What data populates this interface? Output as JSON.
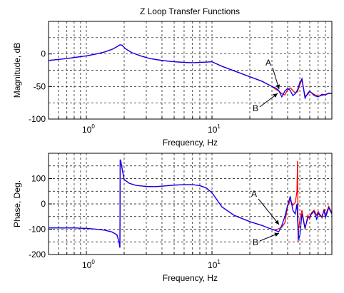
{
  "figure": {
    "title": "Z Loop Transfer Functions"
  },
  "chart_data": [
    {
      "type": "line",
      "title": "Z Loop Transfer Functions",
      "xlabel": "Frequency, Hz",
      "ylabel": "Magnitude, dB",
      "xscale": "log",
      "xlim": [
        0.5,
        90
      ],
      "ylim": [
        -100,
        50
      ],
      "x_ticks": [
        {
          "base": "10",
          "exp": "0"
        },
        {
          "base": "10",
          "exp": "1"
        }
      ],
      "y_ticks": [
        "-100",
        "-50",
        "0"
      ],
      "y_tick_values": [
        -100,
        -50,
        0
      ],
      "grid": true,
      "annotations": [
        {
          "text": "A",
          "x": 36,
          "y": -55
        },
        {
          "text": "B",
          "x": 32,
          "y": -60
        }
      ],
      "series": [
        {
          "name": "A",
          "color": "#ff0000",
          "x": [
            0.5,
            0.6,
            0.7,
            0.8,
            1.0,
            1.2,
            1.4,
            1.6,
            1.75,
            1.85,
            1.92,
            2.05,
            2.3,
            2.7,
            3.2,
            4,
            5,
            6,
            7,
            8,
            9,
            10,
            12,
            15,
            20,
            25,
            30,
            32,
            34,
            36,
            38,
            40,
            42,
            44,
            46,
            48,
            50,
            52,
            55,
            58,
            60,
            65,
            70,
            75,
            80,
            85,
            90
          ],
          "y": [
            -10,
            -8.5,
            -7,
            -5.5,
            -3,
            0,
            3,
            7,
            11,
            14,
            13.5,
            8,
            2,
            -3,
            -7,
            -10,
            -12,
            -13,
            -13.5,
            -13,
            -12.5,
            -12,
            -19,
            -26,
            -35,
            -42,
            -50,
            -54,
            -57,
            -61,
            -63,
            -55,
            -52,
            -56,
            -60,
            -58,
            -47,
            -40,
            -65,
            -62,
            -58,
            -62,
            -65,
            -64,
            -62,
            -61,
            -60
          ]
        },
        {
          "name": "B",
          "color": "#0000ff",
          "x": [
            0.5,
            0.6,
            0.7,
            0.8,
            1.0,
            1.2,
            1.4,
            1.6,
            1.75,
            1.85,
            1.92,
            2.05,
            2.3,
            2.7,
            3.2,
            4,
            5,
            6,
            7,
            8,
            9,
            10,
            12,
            15,
            20,
            25,
            30,
            32,
            34,
            36,
            38,
            40,
            42,
            44,
            46,
            48,
            50,
            52,
            55,
            58,
            60,
            65,
            70,
            75,
            80,
            85,
            90
          ],
          "y": [
            -10,
            -8.5,
            -7,
            -5.5,
            -3,
            0,
            3,
            7,
            11,
            14,
            13.5,
            8,
            2,
            -3,
            -7,
            -10,
            -12,
            -13,
            -13.5,
            -13,
            -12.5,
            -12,
            -19,
            -26,
            -35,
            -42,
            -50,
            -52,
            -56,
            -66,
            -57,
            -53,
            -56,
            -64,
            -61,
            -55,
            -44,
            -38,
            -68,
            -60,
            -57,
            -64,
            -66,
            -62,
            -63,
            -60,
            -61
          ]
        }
      ]
    },
    {
      "type": "line",
      "xlabel": "Frequency, Hz",
      "ylabel": "Phase, Deg.",
      "xscale": "log",
      "xlim": [
        0.5,
        90
      ],
      "ylim": [
        -200,
        200
      ],
      "x_ticks": [
        {
          "base": "10",
          "exp": "0"
        },
        {
          "base": "10",
          "exp": "1"
        }
      ],
      "y_ticks": [
        "-200",
        "-100",
        "0",
        "100"
      ],
      "y_tick_values": [
        -200,
        -100,
        0,
        100
      ],
      "grid": true,
      "annotations": [
        {
          "text": "A",
          "x": 33,
          "y": -60
        },
        {
          "text": "B",
          "x": 31,
          "y": -125
        }
      ],
      "series": [
        {
          "name": "A",
          "color": "#ff0000",
          "x": [
            0.5,
            0.6,
            0.7,
            0.8,
            0.9,
            1.0,
            1.2,
            1.4,
            1.6,
            1.75,
            1.82,
            1.85,
            1.86,
            1.88,
            1.9,
            1.95,
            2.0,
            2.2,
            2.5,
            3,
            3.5,
            4,
            5,
            6,
            7,
            8,
            9,
            10,
            12,
            15,
            20,
            25,
            28,
            30,
            32,
            34,
            36,
            38,
            40,
            42,
            44,
            46,
            47.5,
            48,
            48.5,
            49,
            50,
            52,
            55,
            58,
            60,
            62,
            65,
            68,
            70,
            72,
            75,
            78,
            80,
            85,
            90
          ],
          "y": [
            -95,
            -95,
            -95,
            -95,
            -96,
            -97,
            -100,
            -104,
            -111,
            -122,
            -150,
            -173,
            175,
            168,
            155,
            125,
            96,
            81,
            73,
            69,
            68,
            70,
            74,
            76,
            76,
            72,
            63,
            44,
            -12,
            -45,
            -70,
            -85,
            -95,
            -100,
            -103,
            -98,
            -92,
            -75,
            -10,
            15,
            -5,
            5,
            50,
            170,
            -150,
            -95,
            -65,
            -25,
            -100,
            -45,
            -60,
            -35,
            -25,
            -45,
            -30,
            -40,
            -55,
            -20,
            -45,
            -10,
            -35
          ]
        },
        {
          "name": "B",
          "color": "#0000ff",
          "x": [
            0.5,
            0.6,
            0.7,
            0.8,
            0.9,
            1.0,
            1.2,
            1.4,
            1.6,
            1.75,
            1.82,
            1.85,
            1.86,
            1.88,
            1.9,
            1.95,
            2.0,
            2.2,
            2.5,
            3,
            3.5,
            4,
            5,
            6,
            7,
            8,
            9,
            10,
            12,
            15,
            20,
            25,
            28,
            30,
            32,
            34,
            36,
            38,
            40,
            42,
            44,
            46,
            47.5,
            48,
            48.5,
            49,
            50,
            52,
            55,
            58,
            60,
            62,
            65,
            68,
            70,
            72,
            75,
            78,
            80,
            85,
            90
          ],
          "y": [
            -95,
            -95,
            -95,
            -95,
            -96,
            -97,
            -100,
            -104,
            -111,
            -122,
            -150,
            -173,
            175,
            168,
            155,
            125,
            96,
            81,
            73,
            69,
            68,
            70,
            74,
            76,
            76,
            72,
            63,
            44,
            -12,
            -45,
            -70,
            -85,
            -95,
            -100,
            -105,
            -110,
            -85,
            -50,
            -5,
            30,
            -25,
            -40,
            0,
            -60,
            -100,
            -140,
            -125,
            -40,
            -95,
            -55,
            -50,
            -40,
            -30,
            -60,
            -35,
            -45,
            -50,
            -25,
            -55,
            -15,
            -40
          ]
        }
      ]
    }
  ]
}
